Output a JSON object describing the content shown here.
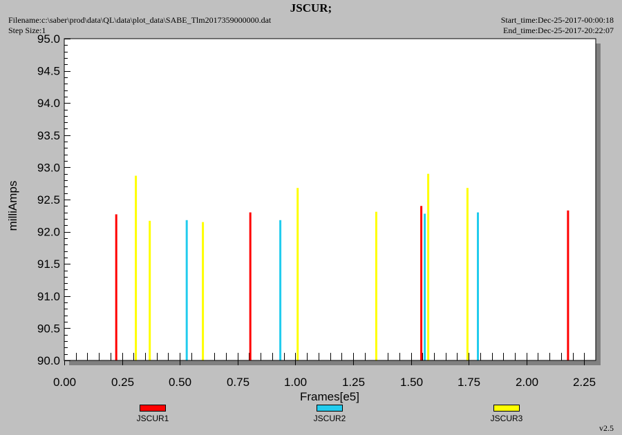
{
  "header": {
    "title": "JSCUR;",
    "filename": "Filename:c:\\saber\\prod\\data\\QL\\data\\plot_data\\SABE_Tlm2017359000000.dat",
    "step_size": "Step Size:1",
    "start_time": "Start_time:Dec-25-2017-00:00:18",
    "end_time": "End_time:Dec-25-2017-20:22:07"
  },
  "footer": {
    "version": "v2.5"
  },
  "colors": {
    "JSCUR1": "#ff0000",
    "JSCUR2": "#22ccee",
    "JSCUR3": "#ffff00"
  },
  "chart_data": {
    "type": "bar",
    "title": "JSCUR;",
    "xlabel": "Frames[e5]",
    "ylabel": "milliAmps",
    "xlim": [
      0.0,
      2.3
    ],
    "ylim": [
      90.0,
      95.0
    ],
    "xticks": [
      "0.00",
      "0.25",
      "0.50",
      "0.75",
      "1.00",
      "1.25",
      "1.50",
      "1.75",
      "2.00",
      "2.25"
    ],
    "yticks": [
      "90.0",
      "90.5",
      "91.0",
      "91.5",
      "92.0",
      "92.5",
      "93.0",
      "93.5",
      "94.0",
      "94.5",
      "95.0"
    ],
    "grid": false,
    "legend_position": "bottom",
    "series": [
      {
        "name": "JSCUR1",
        "color": "#ff0000",
        "x": [
          0.225,
          0.805,
          1.545,
          2.18
        ],
        "y": [
          92.27,
          92.3,
          92.4,
          92.33
        ]
      },
      {
        "name": "JSCUR2",
        "color": "#22ccee",
        "x": [
          0.53,
          0.935,
          1.56,
          1.79
        ],
        "y": [
          92.18,
          92.18,
          92.28,
          92.3
        ]
      },
      {
        "name": "JSCUR3",
        "color": "#ffff00",
        "x": [
          0.31,
          0.37,
          0.6,
          1.01,
          1.35,
          1.575,
          1.745
        ],
        "y": [
          92.87,
          92.17,
          92.15,
          92.68,
          92.31,
          92.9,
          92.68
        ]
      }
    ]
  }
}
